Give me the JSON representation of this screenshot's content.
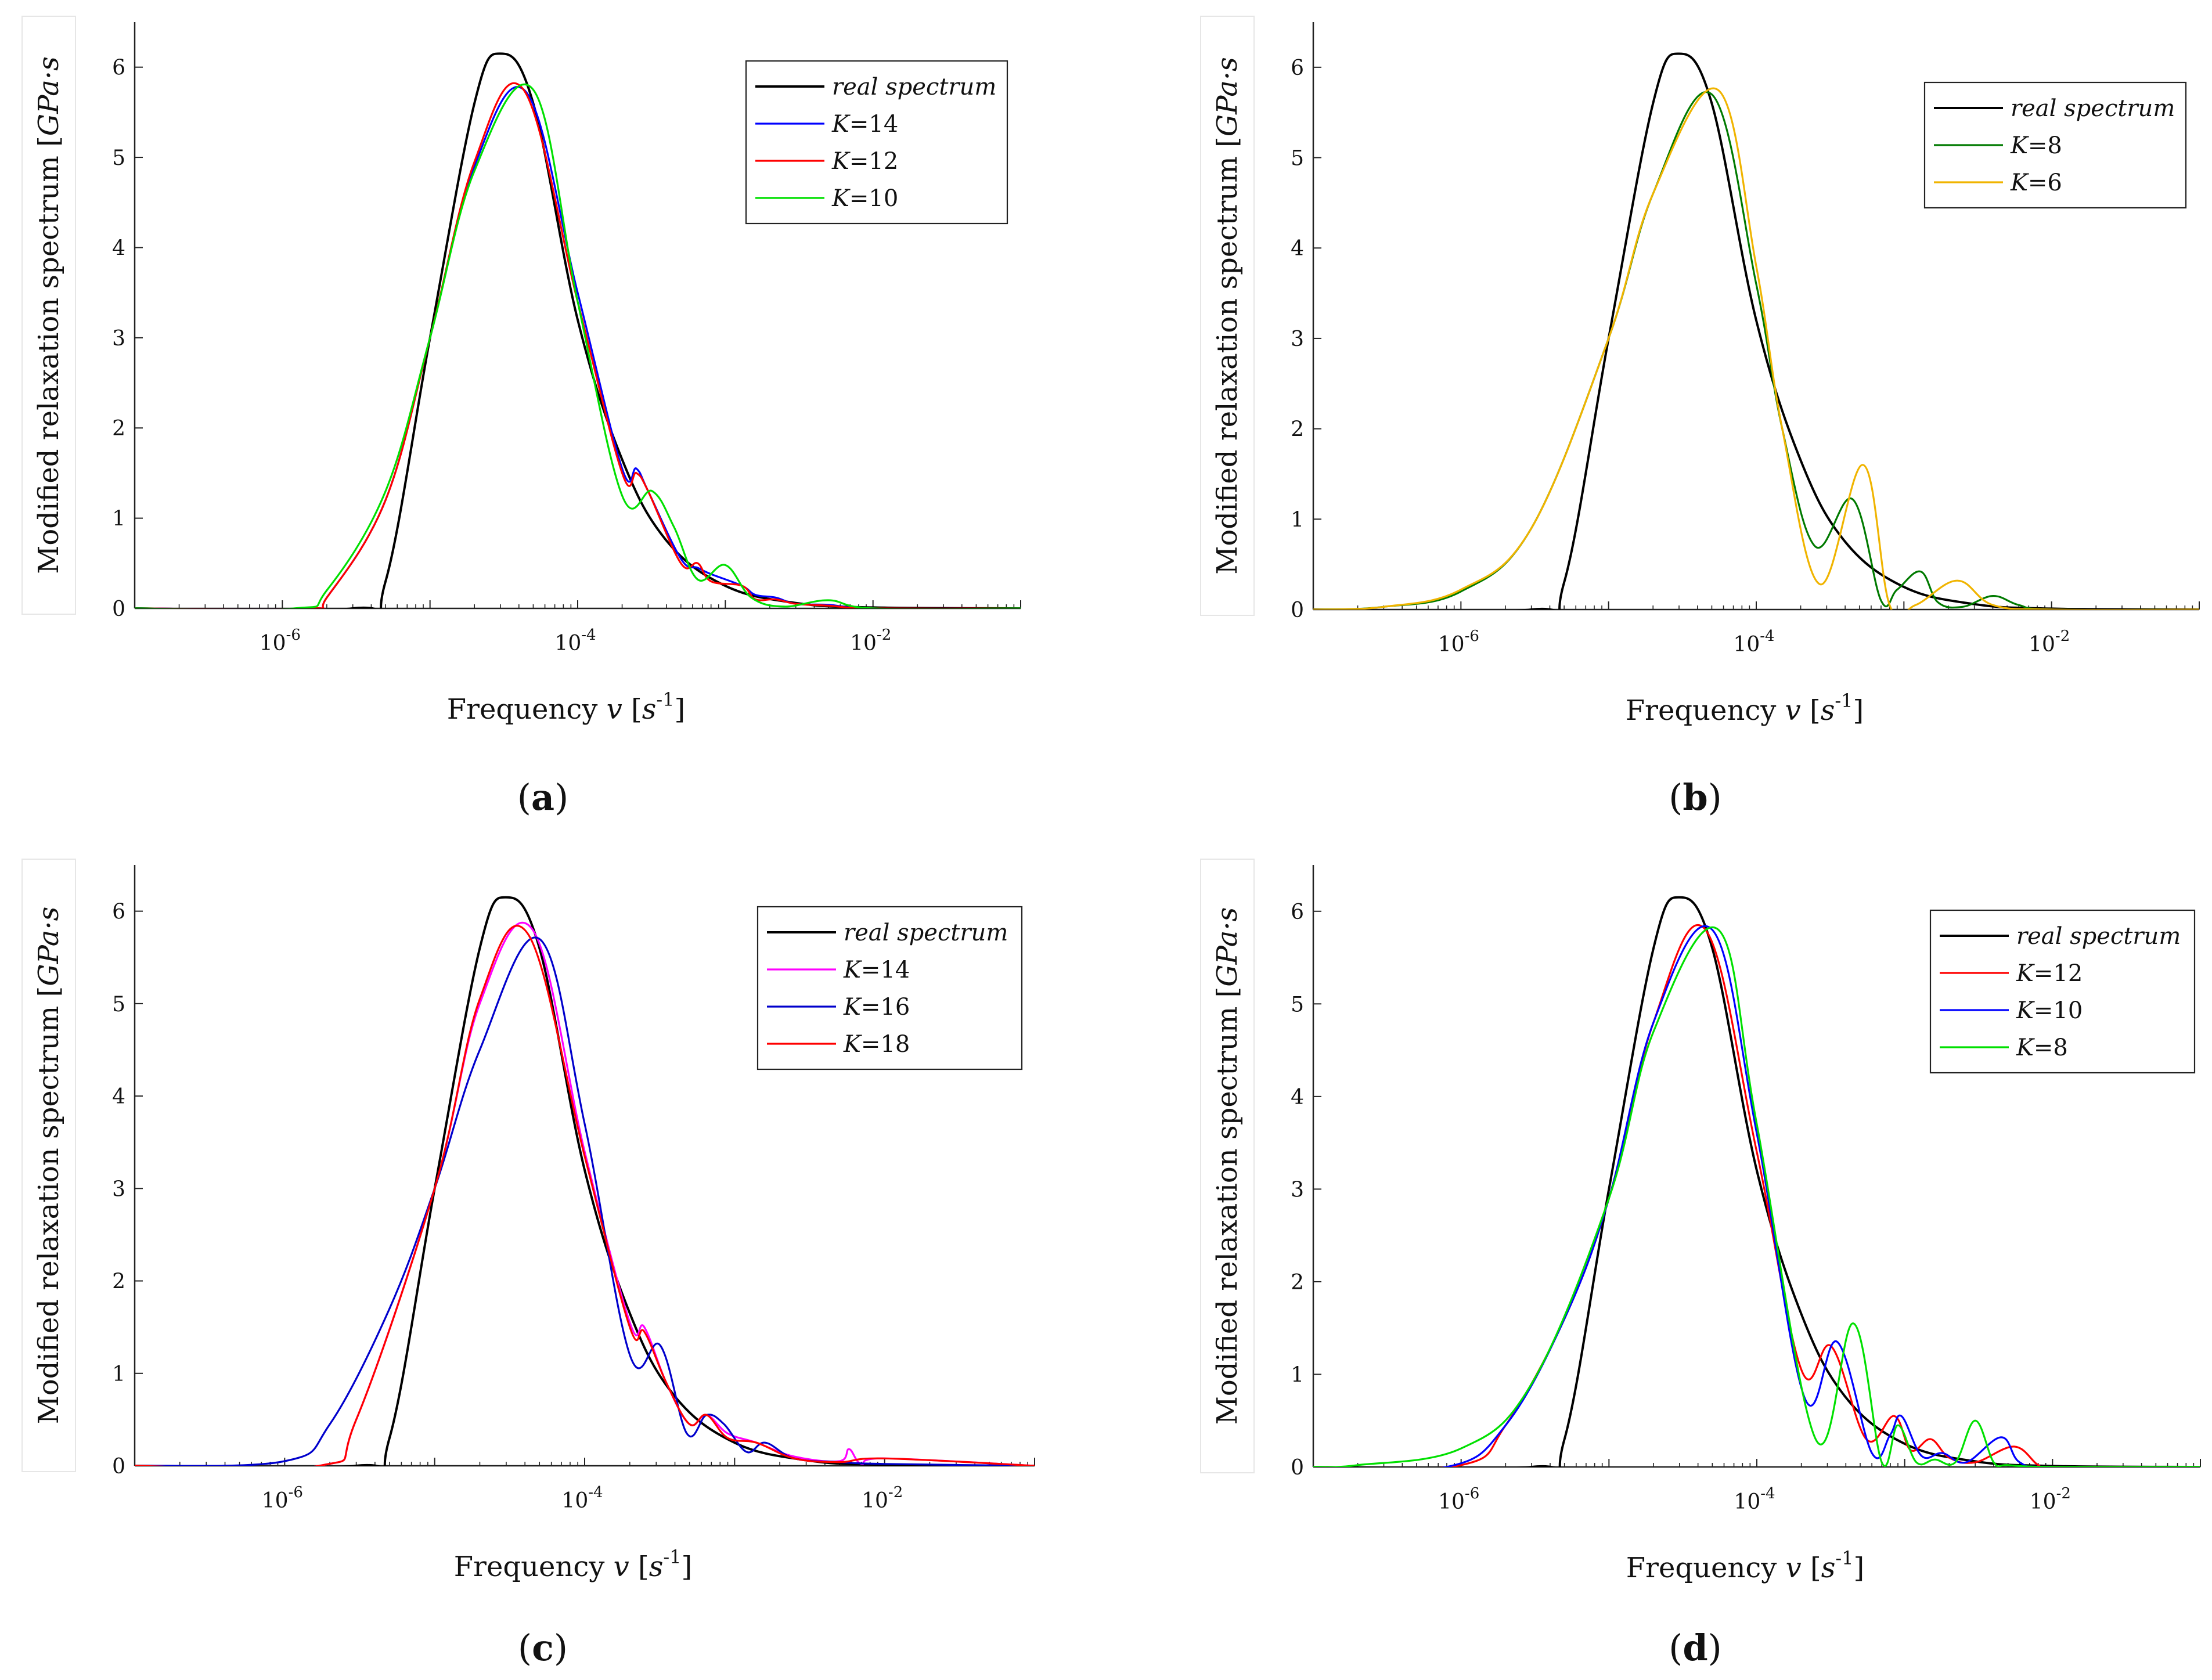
{
  "chart_data": [
    {
      "type": "line",
      "panel_label": "a",
      "xlabel": "Frequency v [s^-1]",
      "ylabel": "Modified relaxation spectrum [GPa·s]",
      "xscale": "log",
      "xlim": [
        1e-07,
        0.1
      ],
      "ylim": [
        0,
        6.5
      ],
      "x_ticks": [
        "10^-6",
        "10^-4",
        "10^-2"
      ],
      "y_ticks": [
        "0",
        "1",
        "2",
        "3",
        "4",
        "5",
        "6"
      ],
      "legend_position": "top-right",
      "grid": false,
      "series": [
        {
          "name": "real spectrum",
          "color": "#000000",
          "x": [
            1e-07,
            3e-06,
            5e-06,
            1e-05,
            2e-05,
            3e-05,
            5e-05,
            0.0001,
            0.0002,
            0.0004,
            0.001,
            0.003,
            0.01,
            0.1
          ],
          "y": [
            0,
            0,
            0.3,
            3.0,
            5.6,
            6.15,
            5.6,
            3.2,
            1.65,
            0.75,
            0.25,
            0.06,
            0.01,
            0
          ]
        },
        {
          "name": "K=14",
          "color": "#0000ff",
          "x": [
            1e-07,
            1.5e-06,
            2e-06,
            5e-06,
            1e-05,
            2e-05,
            4.5e-05,
            0.0001,
            0.0002,
            0.00025,
            0.0003,
            0.0005,
            0.00065,
            0.0008,
            0.0013,
            0.0016,
            0.0022,
            0.003,
            0.005,
            0.01,
            0.1
          ],
          "y": [
            0,
            0,
            0.12,
            1.2,
            3.0,
            4.9,
            5.72,
            3.5,
            1.55,
            1.55,
            1.3,
            0.55,
            0.45,
            0.38,
            0.25,
            0.15,
            0.12,
            0.05,
            0.04,
            0,
            0
          ]
        },
        {
          "name": "K=12",
          "color": "#ff0000",
          "x": [
            1e-07,
            1.5e-06,
            2e-06,
            5e-06,
            1e-05,
            2e-05,
            4.3e-05,
            0.0001,
            0.0002,
            0.00025,
            0.0003,
            0.0005,
            0.00065,
            0.0008,
            0.0013,
            0.0016,
            0.0022,
            0.003,
            0.005,
            0.01,
            0.1
          ],
          "y": [
            0,
            0,
            0.12,
            1.2,
            3.0,
            4.95,
            5.75,
            3.4,
            1.5,
            1.5,
            1.3,
            0.5,
            0.5,
            0.3,
            0.25,
            0.1,
            0.1,
            0.05,
            0.03,
            0,
            0
          ]
        },
        {
          "name": "K=10",
          "color": "#00e000",
          "x": [
            1e-07,
            1.2e-06,
            2e-06,
            5e-06,
            1e-05,
            2e-05,
            5e-05,
            0.0001,
            0.0002,
            0.00032,
            0.00045,
            0.00065,
            0.001,
            0.0015,
            0.0025,
            0.005,
            0.01,
            0.1
          ],
          "y": [
            0,
            0,
            0.2,
            1.3,
            3.0,
            4.85,
            5.75,
            3.4,
            1.25,
            1.3,
            0.9,
            0.32,
            0.48,
            0.12,
            0.02,
            0.09,
            0,
            0
          ]
        }
      ]
    },
    {
      "type": "line",
      "panel_label": "b",
      "xlabel": "Frequency v [s^-1]",
      "ylabel": "Modified relaxation spectrum [GPa·s]",
      "xscale": "log",
      "xlim": [
        1e-07,
        0.1
      ],
      "ylim": [
        0,
        6.5
      ],
      "x_ticks": [
        "10^-6",
        "10^-4",
        "10^-2"
      ],
      "y_ticks": [
        "0",
        "1",
        "2",
        "3",
        "4",
        "5",
        "6"
      ],
      "legend_position": "top-right",
      "grid": false,
      "series": [
        {
          "name": "real spectrum",
          "color": "#000000",
          "x": [
            1e-07,
            3e-06,
            5e-06,
            1e-05,
            2e-05,
            3e-05,
            5e-05,
            0.0001,
            0.0002,
            0.0004,
            0.001,
            0.003,
            0.01,
            0.1
          ],
          "y": [
            0,
            0,
            0.3,
            3.0,
            5.6,
            6.15,
            5.6,
            3.2,
            1.65,
            0.75,
            0.25,
            0.06,
            0.01,
            0
          ]
        },
        {
          "name": "K=8",
          "color": "#007a00",
          "x": [
            1e-07,
            3e-07,
            1e-06,
            3e-06,
            1e-05,
            2e-05,
            5e-05,
            0.0001,
            0.00015,
            0.00025,
            0.00045,
            0.0007,
            0.0009,
            0.0013,
            0.0017,
            0.0025,
            0.004,
            0.006,
            0.01,
            0.1
          ],
          "y": [
            0,
            0.03,
            0.2,
            0.9,
            3.0,
            4.6,
            5.7,
            3.6,
            2.0,
            0.7,
            1.22,
            0.1,
            0.22,
            0.42,
            0.08,
            0.03,
            0.15,
            0.05,
            0,
            0
          ]
        },
        {
          "name": "K=6",
          "color": "#f0b400",
          "x": [
            1e-07,
            3e-07,
            1e-06,
            3e-06,
            1e-05,
            2e-05,
            5.5e-05,
            0.0001,
            0.00015,
            0.00027,
            0.00053,
            0.0008,
            0.0012,
            0.0023,
            0.004,
            0.01,
            0.1
          ],
          "y": [
            0,
            0.03,
            0.22,
            0.9,
            3.0,
            4.6,
            5.75,
            3.8,
            2.0,
            0.28,
            1.6,
            0.05,
            0.05,
            0.32,
            0.05,
            0,
            0
          ]
        }
      ]
    },
    {
      "type": "line",
      "panel_label": "c",
      "xlabel": "Frequency v [s^-1]",
      "ylabel": "Modified relaxation spectrum [GPa·s]",
      "xscale": "log",
      "xlim": [
        1e-07,
        0.1
      ],
      "ylim": [
        0,
        6.5
      ],
      "x_ticks": [
        "10^-6",
        "10^-4",
        "10^-2"
      ],
      "y_ticks": [
        "0",
        "1",
        "2",
        "3",
        "4",
        "5",
        "6"
      ],
      "legend_position": "top-right",
      "grid": false,
      "series": [
        {
          "name": "real spectrum",
          "color": "#000000",
          "x": [
            1e-07,
            3e-06,
            5e-06,
            1e-05,
            2e-05,
            3e-05,
            5e-05,
            0.0001,
            0.0002,
            0.0004,
            0.001,
            0.003,
            0.01,
            0.1
          ],
          "y": [
            0,
            0,
            0.3,
            3.0,
            5.6,
            6.15,
            5.6,
            3.2,
            1.65,
            0.75,
            0.25,
            0.06,
            0.01,
            0
          ]
        },
        {
          "name": "K=14",
          "color": "#ff00ff",
          "x": [
            1e-07,
            1.7e-06,
            3e-06,
            1e-05,
            2e-05,
            4.5e-05,
            0.0001,
            0.0002,
            0.00025,
            0.00035,
            0.0005,
            0.00065,
            0.0009,
            0.0014,
            0.0025,
            0.005,
            0.0058,
            0.007,
            0.01,
            0.1
          ],
          "y": [
            0,
            0,
            0.5,
            3.0,
            5.0,
            5.8,
            3.4,
            1.55,
            1.5,
            0.9,
            0.45,
            0.55,
            0.35,
            0.25,
            0.1,
            0.05,
            0.18,
            0.02,
            0.08,
            0
          ]
        },
        {
          "name": "K=16",
          "color": "#0000cc",
          "x": [
            1e-07,
            1e-06,
            2e-06,
            5e-06,
            1e-05,
            2e-05,
            5e-05,
            0.0001,
            0.0002,
            0.00032,
            0.00048,
            0.00065,
            0.00085,
            0.0012,
            0.0016,
            0.0025,
            0.005,
            0.01,
            0.1
          ],
          "y": [
            0,
            0.05,
            0.45,
            1.7,
            3.0,
            4.5,
            5.7,
            3.7,
            1.2,
            1.3,
            0.35,
            0.55,
            0.45,
            0.15,
            0.25,
            0.08,
            0.04,
            0.02,
            0
          ]
        },
        {
          "name": "K=18",
          "color": "#ff0000",
          "x": [
            1e-07,
            1.7e-06,
            3e-06,
            1e-05,
            2e-05,
            4.2e-05,
            0.0001,
            0.0002,
            0.00025,
            0.00035,
            0.0005,
            0.00065,
            0.0009,
            0.0014,
            0.0025,
            0.005,
            0.01,
            0.1
          ],
          "y": [
            0,
            0,
            0.5,
            3.0,
            5.05,
            5.75,
            3.35,
            1.5,
            1.45,
            0.9,
            0.45,
            0.55,
            0.3,
            0.25,
            0.08,
            0.04,
            0.08,
            0
          ]
        }
      ]
    },
    {
      "type": "line",
      "panel_label": "d",
      "xlabel": "Frequency v [s^-1]",
      "ylabel": "Modified relaxation spectrum [GPa·s]",
      "xscale": "log",
      "xlim": [
        1e-07,
        0.1
      ],
      "ylim": [
        0,
        6.5
      ],
      "x_ticks": [
        "10^-6",
        "10^-4",
        "10^-2"
      ],
      "y_ticks": [
        "0",
        "1",
        "2",
        "3",
        "4",
        "5",
        "6"
      ],
      "legend_position": "top-right",
      "grid": false,
      "series": [
        {
          "name": "real spectrum",
          "color": "#000000",
          "x": [
            1e-07,
            3e-06,
            5e-06,
            1e-05,
            2e-05,
            3e-05,
            5e-05,
            0.0001,
            0.0002,
            0.0004,
            0.001,
            0.003,
            0.01,
            0.1
          ],
          "y": [
            0,
            0,
            0.3,
            3.0,
            5.6,
            6.15,
            5.6,
            3.2,
            1.65,
            0.75,
            0.25,
            0.06,
            0.01,
            0
          ]
        },
        {
          "name": "K=12",
          "color": "#ff0000",
          "x": [
            1e-07,
            1e-06,
            2e-06,
            5e-06,
            1e-05,
            2e-05,
            4.5e-05,
            0.0001,
            0.0002,
            0.00032,
            0.00055,
            0.00085,
            0.0011,
            0.0015,
            0.002,
            0.003,
            0.0055,
            0.008,
            0.01,
            0.1
          ],
          "y": [
            0,
            0.02,
            0.45,
            1.6,
            2.9,
            4.8,
            5.8,
            3.4,
            1.05,
            1.3,
            0.3,
            0.55,
            0.18,
            0.3,
            0.1,
            0.05,
            0.22,
            0.02,
            0,
            0
          ]
        },
        {
          "name": "K=10",
          "color": "#0000ff",
          "x": [
            1e-07,
            8e-07,
            2e-06,
            5e-06,
            1e-05,
            2e-05,
            5e-05,
            0.0001,
            0.00021,
            0.00035,
            0.0006,
            0.0008,
            0.00095,
            0.0013,
            0.0018,
            0.0026,
            0.0045,
            0.006,
            0.01,
            0.1
          ],
          "y": [
            0,
            0,
            0.45,
            1.6,
            2.9,
            4.8,
            5.8,
            3.6,
            0.75,
            1.35,
            0.15,
            0.35,
            0.55,
            0.12,
            0.15,
            0.05,
            0.32,
            0.05,
            0,
            0
          ]
        },
        {
          "name": "K=8",
          "color": "#00e000",
          "x": [
            1e-07,
            2e-07,
            1e-06,
            3e-06,
            1e-05,
            2e-05,
            5.5e-05,
            0.0001,
            0.00025,
            0.00045,
            0.0007,
            0.0009,
            0.0012,
            0.0016,
            0.0022,
            0.003,
            0.004,
            0.005,
            0.01,
            0.1
          ],
          "y": [
            0,
            0.02,
            0.2,
            0.9,
            2.9,
            4.7,
            5.8,
            3.7,
            0.3,
            1.55,
            0.05,
            0.45,
            0.05,
            0.08,
            0.05,
            0.5,
            0.05,
            0.02,
            0,
            0
          ]
        }
      ]
    }
  ],
  "captions": [
    "(a)",
    "(b)",
    "(c)",
    "(d)"
  ]
}
